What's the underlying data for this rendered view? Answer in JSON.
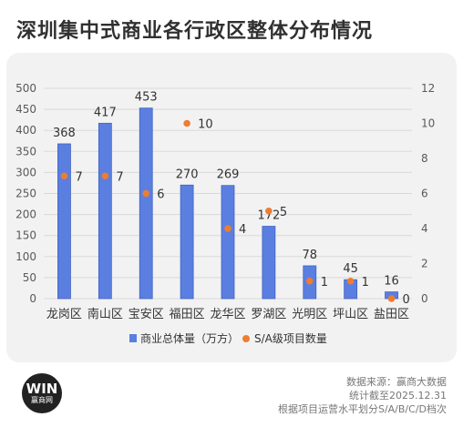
{
  "title": "深圳集中式商业各行政区整体分布情况",
  "chart_data": {
    "type": "bar",
    "categories": [
      "龙岗区",
      "南山区",
      "宝安区",
      "福田区",
      "龙华区",
      "罗湖区",
      "光明区",
      "坪山区",
      "盐田区"
    ],
    "series": [
      {
        "name": "商业总体量（万方）",
        "type": "bar",
        "axis": "left",
        "color": "#5b7fe0",
        "values": [
          368,
          417,
          453,
          270,
          269,
          172,
          78,
          45,
          16
        ]
      },
      {
        "name": "S/A级项目数量",
        "type": "scatter",
        "axis": "right",
        "color": "#ed7d31",
        "values": [
          7,
          7,
          6,
          10,
          4,
          5,
          1,
          1,
          0
        ]
      }
    ],
    "y_left": {
      "min": 0,
      "max": 500,
      "ticks": [
        0,
        50,
        100,
        150,
        200,
        250,
        300,
        350,
        400,
        450,
        500
      ]
    },
    "y_right": {
      "min": 0,
      "max": 12,
      "ticks": [
        0,
        2,
        4,
        6,
        8,
        10,
        12
      ]
    },
    "grid": true,
    "legend_position": "bottom"
  },
  "footer": {
    "source": "数据来源：赢商大数据",
    "date": "统计截至2025.12.31",
    "note": "根据项目运营水平划分S/A/B/C/D档次"
  },
  "logo": {
    "mark": "WIN",
    "text": "赢商网"
  }
}
